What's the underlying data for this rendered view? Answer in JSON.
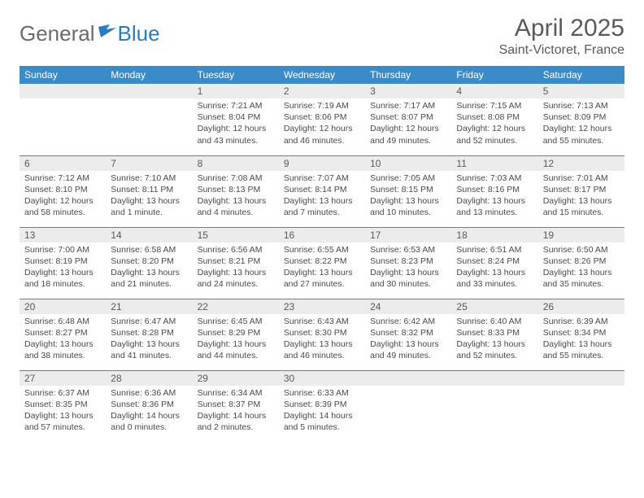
{
  "logo": {
    "text1": "General",
    "text2": "Blue"
  },
  "title": "April 2025",
  "location": "Saint-Victoret, France",
  "colors": {
    "header_bg": "#3b8bc9",
    "header_text": "#ffffff",
    "daynum_bg": "#ececec",
    "border": "#3b8bc9",
    "text": "#4a4a4a",
    "logo_gray": "#6b6b6b",
    "logo_blue": "#2b7bbf"
  },
  "day_headers": [
    "Sunday",
    "Monday",
    "Tuesday",
    "Wednesday",
    "Thursday",
    "Friday",
    "Saturday"
  ],
  "weeks": [
    [
      {
        "n": "",
        "sr": "",
        "ss": "",
        "dl": ""
      },
      {
        "n": "",
        "sr": "",
        "ss": "",
        "dl": ""
      },
      {
        "n": "1",
        "sr": "Sunrise: 7:21 AM",
        "ss": "Sunset: 8:04 PM",
        "dl": "Daylight: 12 hours and 43 minutes."
      },
      {
        "n": "2",
        "sr": "Sunrise: 7:19 AM",
        "ss": "Sunset: 8:06 PM",
        "dl": "Daylight: 12 hours and 46 minutes."
      },
      {
        "n": "3",
        "sr": "Sunrise: 7:17 AM",
        "ss": "Sunset: 8:07 PM",
        "dl": "Daylight: 12 hours and 49 minutes."
      },
      {
        "n": "4",
        "sr": "Sunrise: 7:15 AM",
        "ss": "Sunset: 8:08 PM",
        "dl": "Daylight: 12 hours and 52 minutes."
      },
      {
        "n": "5",
        "sr": "Sunrise: 7:13 AM",
        "ss": "Sunset: 8:09 PM",
        "dl": "Daylight: 12 hours and 55 minutes."
      }
    ],
    [
      {
        "n": "6",
        "sr": "Sunrise: 7:12 AM",
        "ss": "Sunset: 8:10 PM",
        "dl": "Daylight: 12 hours and 58 minutes."
      },
      {
        "n": "7",
        "sr": "Sunrise: 7:10 AM",
        "ss": "Sunset: 8:11 PM",
        "dl": "Daylight: 13 hours and 1 minute."
      },
      {
        "n": "8",
        "sr": "Sunrise: 7:08 AM",
        "ss": "Sunset: 8:13 PM",
        "dl": "Daylight: 13 hours and 4 minutes."
      },
      {
        "n": "9",
        "sr": "Sunrise: 7:07 AM",
        "ss": "Sunset: 8:14 PM",
        "dl": "Daylight: 13 hours and 7 minutes."
      },
      {
        "n": "10",
        "sr": "Sunrise: 7:05 AM",
        "ss": "Sunset: 8:15 PM",
        "dl": "Daylight: 13 hours and 10 minutes."
      },
      {
        "n": "11",
        "sr": "Sunrise: 7:03 AM",
        "ss": "Sunset: 8:16 PM",
        "dl": "Daylight: 13 hours and 13 minutes."
      },
      {
        "n": "12",
        "sr": "Sunrise: 7:01 AM",
        "ss": "Sunset: 8:17 PM",
        "dl": "Daylight: 13 hours and 15 minutes."
      }
    ],
    [
      {
        "n": "13",
        "sr": "Sunrise: 7:00 AM",
        "ss": "Sunset: 8:19 PM",
        "dl": "Daylight: 13 hours and 18 minutes."
      },
      {
        "n": "14",
        "sr": "Sunrise: 6:58 AM",
        "ss": "Sunset: 8:20 PM",
        "dl": "Daylight: 13 hours and 21 minutes."
      },
      {
        "n": "15",
        "sr": "Sunrise: 6:56 AM",
        "ss": "Sunset: 8:21 PM",
        "dl": "Daylight: 13 hours and 24 minutes."
      },
      {
        "n": "16",
        "sr": "Sunrise: 6:55 AM",
        "ss": "Sunset: 8:22 PM",
        "dl": "Daylight: 13 hours and 27 minutes."
      },
      {
        "n": "17",
        "sr": "Sunrise: 6:53 AM",
        "ss": "Sunset: 8:23 PM",
        "dl": "Daylight: 13 hours and 30 minutes."
      },
      {
        "n": "18",
        "sr": "Sunrise: 6:51 AM",
        "ss": "Sunset: 8:24 PM",
        "dl": "Daylight: 13 hours and 33 minutes."
      },
      {
        "n": "19",
        "sr": "Sunrise: 6:50 AM",
        "ss": "Sunset: 8:26 PM",
        "dl": "Daylight: 13 hours and 35 minutes."
      }
    ],
    [
      {
        "n": "20",
        "sr": "Sunrise: 6:48 AM",
        "ss": "Sunset: 8:27 PM",
        "dl": "Daylight: 13 hours and 38 minutes."
      },
      {
        "n": "21",
        "sr": "Sunrise: 6:47 AM",
        "ss": "Sunset: 8:28 PM",
        "dl": "Daylight: 13 hours and 41 minutes."
      },
      {
        "n": "22",
        "sr": "Sunrise: 6:45 AM",
        "ss": "Sunset: 8:29 PM",
        "dl": "Daylight: 13 hours and 44 minutes."
      },
      {
        "n": "23",
        "sr": "Sunrise: 6:43 AM",
        "ss": "Sunset: 8:30 PM",
        "dl": "Daylight: 13 hours and 46 minutes."
      },
      {
        "n": "24",
        "sr": "Sunrise: 6:42 AM",
        "ss": "Sunset: 8:32 PM",
        "dl": "Daylight: 13 hours and 49 minutes."
      },
      {
        "n": "25",
        "sr": "Sunrise: 6:40 AM",
        "ss": "Sunset: 8:33 PM",
        "dl": "Daylight: 13 hours and 52 minutes."
      },
      {
        "n": "26",
        "sr": "Sunrise: 6:39 AM",
        "ss": "Sunset: 8:34 PM",
        "dl": "Daylight: 13 hours and 55 minutes."
      }
    ],
    [
      {
        "n": "27",
        "sr": "Sunrise: 6:37 AM",
        "ss": "Sunset: 8:35 PM",
        "dl": "Daylight: 13 hours and 57 minutes."
      },
      {
        "n": "28",
        "sr": "Sunrise: 6:36 AM",
        "ss": "Sunset: 8:36 PM",
        "dl": "Daylight: 14 hours and 0 minutes."
      },
      {
        "n": "29",
        "sr": "Sunrise: 6:34 AM",
        "ss": "Sunset: 8:37 PM",
        "dl": "Daylight: 14 hours and 2 minutes."
      },
      {
        "n": "30",
        "sr": "Sunrise: 6:33 AM",
        "ss": "Sunset: 8:39 PM",
        "dl": "Daylight: 14 hours and 5 minutes."
      },
      {
        "n": "",
        "sr": "",
        "ss": "",
        "dl": ""
      },
      {
        "n": "",
        "sr": "",
        "ss": "",
        "dl": ""
      },
      {
        "n": "",
        "sr": "",
        "ss": "",
        "dl": ""
      }
    ]
  ]
}
